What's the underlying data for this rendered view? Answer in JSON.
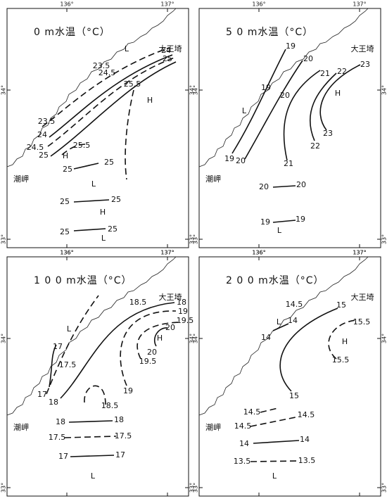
{
  "axes": {
    "lon": [
      "136°",
      "137°"
    ],
    "lat": [
      "34°",
      "33°"
    ]
  },
  "places": [
    "大王埼",
    "潮岬"
  ],
  "panels": [
    {
      "title": "0 m水温（°C）",
      "labels": [
        "24",
        "25",
        "23.5",
        "24.5",
        "25.5",
        "23.5",
        "24",
        "24.5",
        "25",
        "25.5",
        "25",
        "25",
        "25",
        "25",
        "25",
        "25",
        "H",
        "H",
        "H",
        "L",
        "L",
        "L"
      ]
    },
    {
      "title": "5 0 m水温（°C）",
      "labels": [
        "19",
        "20",
        "21",
        "22",
        "23",
        "19",
        "20",
        "19",
        "20",
        "21",
        "22",
        "23",
        "20",
        "20",
        "19",
        "19",
        "H",
        "L",
        "L"
      ]
    },
    {
      "title": "1 0 0 m水温（°C）",
      "labels": [
        "18",
        "18.5",
        "19",
        "19.5",
        "20",
        "20",
        "19.5",
        "19",
        "17",
        "17.5",
        "17",
        "18",
        "18.5",
        "18",
        "18",
        "17.5",
        "17.5",
        "17",
        "17",
        "H",
        "L",
        "L"
      ]
    },
    {
      "title": "2 0 0 m水温（°C）",
      "labels": [
        "14.5",
        "15",
        "15.5",
        "14",
        "14",
        "15.5",
        "15",
        "14.5",
        "14.5",
        "14.5",
        "14",
        "14",
        "13.5",
        "13.5",
        "H",
        "L",
        "L"
      ]
    }
  ]
}
